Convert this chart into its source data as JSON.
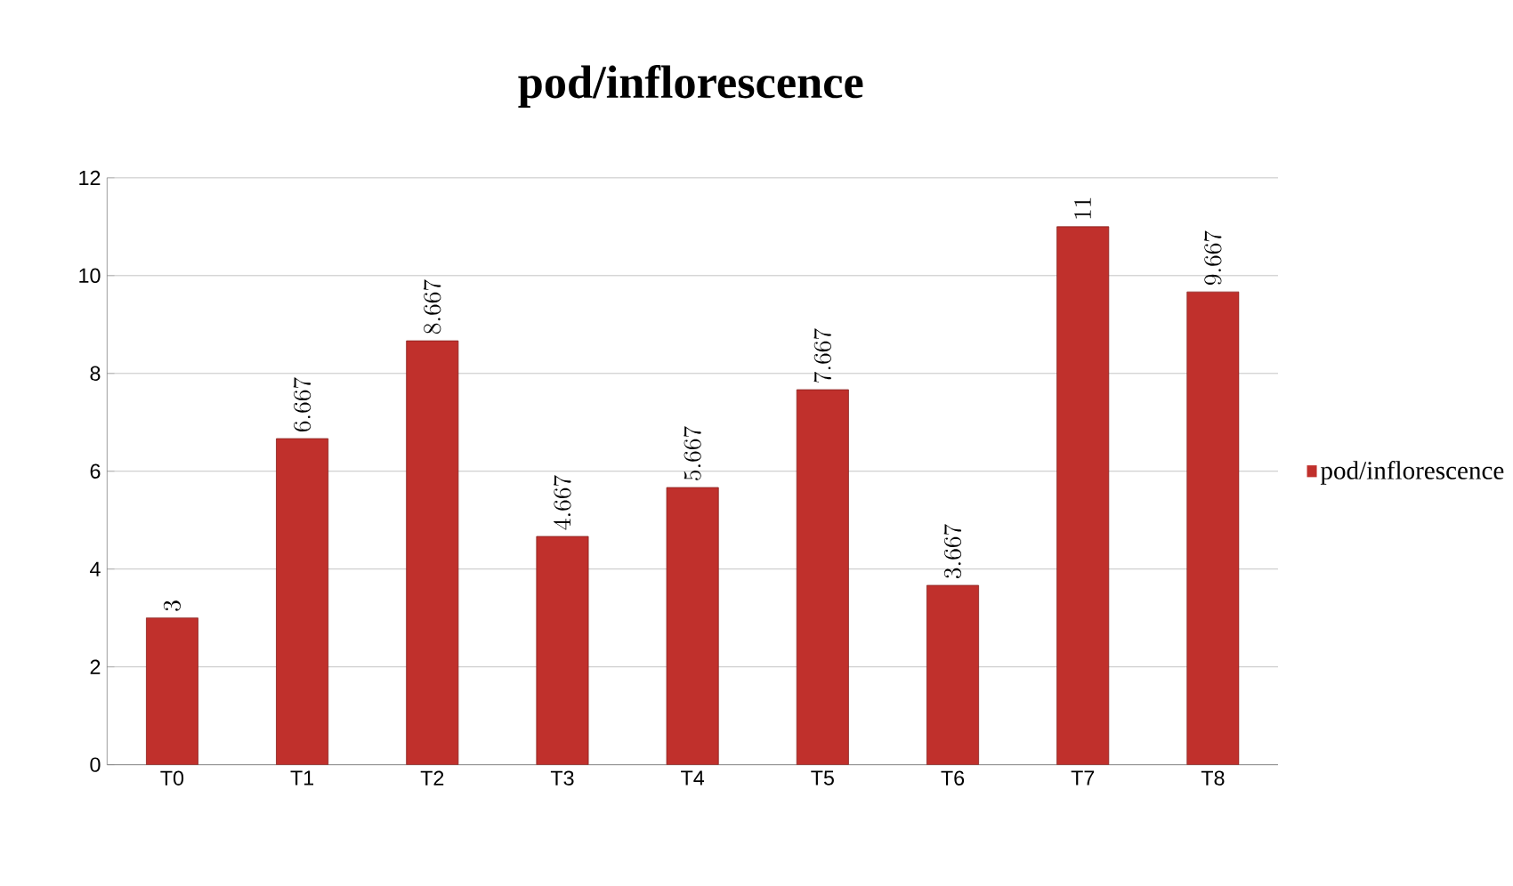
{
  "chart_data": {
    "type": "bar",
    "title": "pod/inflorescence",
    "categories": [
      "T0",
      "T1",
      "T2",
      "T3",
      "T4",
      "T5",
      "T6",
      "T7",
      "T8"
    ],
    "series": [
      {
        "name": "pod/inflorescence",
        "color": "#c0302c",
        "values": [
          3,
          6.667,
          8.667,
          4.667,
          5.667,
          7.667,
          3.667,
          11,
          9.667
        ]
      }
    ],
    "ylim": [
      0,
      12
    ],
    "yticks": [
      0,
      2,
      4,
      6,
      8,
      10,
      12
    ],
    "grid": "y",
    "legend": "right",
    "data_labels": true
  }
}
